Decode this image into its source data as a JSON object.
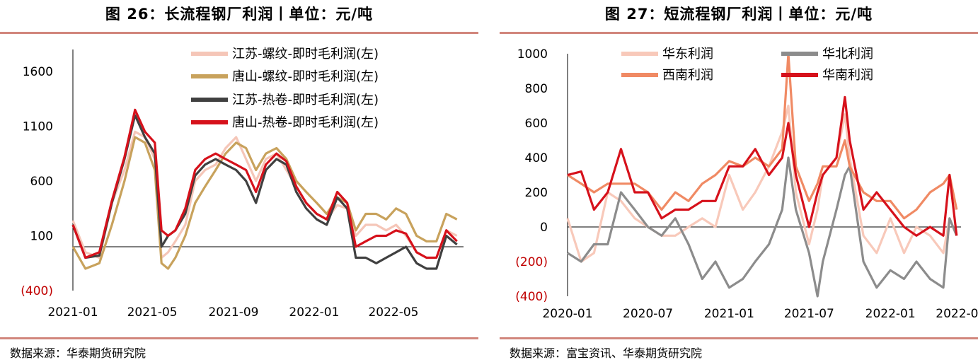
{
  "left": {
    "title": "图 26：长流程钢厂利润丨单位：元/吨",
    "source": "数据来源：华泰期货研究院",
    "chart_data": {
      "type": "line",
      "ylim": [
        -400,
        1800
      ],
      "yticks": [
        1600,
        1100,
        600,
        100,
        -400
      ],
      "ytick_labels": [
        "1600",
        "1100",
        "600",
        "100",
        "(400)"
      ],
      "x_dates": [
        "2021-01-01",
        "2021-01-20",
        "2021-02-10",
        "2021-03-01",
        "2021-03-20",
        "2021-04-05",
        "2021-04-20",
        "2021-05-05",
        "2021-05-15",
        "2021-05-25",
        "2021-06-05",
        "2021-06-20",
        "2021-07-05",
        "2021-07-20",
        "2021-08-05",
        "2021-08-20",
        "2021-09-05",
        "2021-09-20",
        "2021-10-05",
        "2021-10-20",
        "2021-11-05",
        "2021-11-20",
        "2021-12-05",
        "2021-12-20",
        "2022-01-05",
        "2022-01-20",
        "2022-02-05",
        "2022-02-20",
        "2022-03-05",
        "2022-03-20",
        "2022-04-05",
        "2022-04-20",
        "2022-05-05",
        "2022-05-20",
        "2022-06-05",
        "2022-06-20",
        "2022-07-05",
        "2022-07-20",
        "2022-08-05"
      ],
      "xtick_dates": [
        "2021-01-01",
        "2021-05-01",
        "2021-09-01",
        "2022-01-01",
        "2022-05-01"
      ],
      "xtick_labels": [
        "2021-01",
        "2021-05",
        "2021-09",
        "2022-01",
        "2022-05"
      ],
      "series": [
        {
          "name": "江苏-螺纹-即时毛利润(左)",
          "color": "#f5c6b8",
          "values": [
            240,
            -50,
            -100,
            400,
            700,
            1050,
            1000,
            800,
            -100,
            -50,
            50,
            200,
            600,
            700,
            750,
            900,
            1000,
            800,
            600,
            800,
            850,
            700,
            550,
            400,
            300,
            250,
            380,
            350,
            100,
            200,
            200,
            150,
            200,
            100,
            -50,
            -100,
            -100,
            150,
            100
          ]
        },
        {
          "name": "唐山-螺纹-即时毛利润(左)",
          "color": "#c8a25c",
          "values": [
            0,
            -200,
            -150,
            200,
            600,
            1000,
            950,
            700,
            -150,
            -200,
            -100,
            100,
            400,
            550,
            700,
            850,
            950,
            900,
            700,
            850,
            900,
            800,
            600,
            500,
            400,
            300,
            450,
            400,
            150,
            300,
            300,
            250,
            350,
            300,
            100,
            50,
            50,
            300,
            250
          ]
        },
        {
          "name": "江苏-热卷-即时毛利润(左)",
          "color": "#404040",
          "values": [
            200,
            -100,
            -80,
            400,
            800,
            1200,
            1000,
            850,
            0,
            100,
            150,
            300,
            650,
            750,
            800,
            750,
            700,
            600,
            400,
            700,
            800,
            750,
            500,
            350,
            250,
            200,
            450,
            350,
            -100,
            -100,
            -150,
            -100,
            -50,
            0,
            -150,
            -200,
            -200,
            100,
            20
          ]
        },
        {
          "name": "唐山-热卷-即时毛利润(左)",
          "color": "#d6111b",
          "values": [
            200,
            -100,
            -50,
            420,
            820,
            1250,
            1050,
            950,
            150,
            100,
            150,
            350,
            700,
            800,
            850,
            800,
            750,
            700,
            500,
            750,
            850,
            780,
            550,
            400,
            300,
            250,
            500,
            400,
            0,
            50,
            100,
            100,
            150,
            120,
            -50,
            -100,
            -100,
            150,
            50
          ]
        }
      ]
    }
  },
  "right": {
    "title": "图 27：短流程钢厂利润丨单位：元/吨",
    "source": "数据来源：富宝资讯、华泰期货研究院",
    "chart_data": {
      "type": "line",
      "ylim": [
        -400,
        1000
      ],
      "yticks": [
        1000,
        800,
        600,
        400,
        200,
        0,
        -200,
        -400
      ],
      "ytick_labels": [
        "1000",
        "800",
        "600",
        "400",
        "200",
        "0",
        "(200)",
        "(400)"
      ],
      "x_dates": [
        "2020-01-01",
        "2020-02-01",
        "2020-03-01",
        "2020-04-01",
        "2020-05-01",
        "2020-06-01",
        "2020-07-01",
        "2020-08-01",
        "2020-09-01",
        "2020-10-01",
        "2020-11-01",
        "2020-12-01",
        "2021-01-01",
        "2021-02-01",
        "2021-03-01",
        "2021-04-01",
        "2021-05-01",
        "2021-05-15",
        "2021-06-01",
        "2021-07-01",
        "2021-07-20",
        "2021-08-01",
        "2021-09-01",
        "2021-09-20",
        "2021-10-01",
        "2021-11-01",
        "2021-12-01",
        "2022-01-01",
        "2022-02-01",
        "2022-03-01",
        "2022-04-01",
        "2022-05-01",
        "2022-05-15",
        "2022-05-31"
      ],
      "xtick_dates": [
        "2020-01-01",
        "2020-07-01",
        "2021-01-01",
        "2021-07-01",
        "2022-01-01",
        "2022-06-01"
      ],
      "xtick_labels": [
        "2020-01",
        "2020-07",
        "2021-01",
        "2021-07",
        "2022-01",
        "2022-0"
      ],
      "series": [
        {
          "name": "华东利润",
          "color": "#f8c9ba",
          "values": [
            50,
            -200,
            -150,
            200,
            150,
            50,
            0,
            -50,
            -50,
            0,
            50,
            0,
            300,
            100,
            200,
            350,
            550,
            700,
            200,
            -100,
            100,
            300,
            400,
            650,
            400,
            -50,
            -150,
            50,
            -150,
            0,
            -50,
            -150,
            50,
            -50
          ]
        },
        {
          "name": "华北利润",
          "color": "#8c8c8c",
          "values": [
            -150,
            -200,
            -100,
            -100,
            200,
            100,
            0,
            -50,
            50,
            -100,
            -300,
            -200,
            -350,
            -300,
            -200,
            -100,
            100,
            400,
            100,
            -150,
            -400,
            -200,
            100,
            300,
            350,
            -200,
            -350,
            -250,
            -300,
            -200,
            -300,
            -350,
            50,
            -50
          ]
        },
        {
          "name": "西南利润",
          "color": "#f08a64",
          "values": [
            300,
            250,
            200,
            250,
            250,
            250,
            200,
            100,
            200,
            150,
            250,
            300,
            380,
            350,
            400,
            350,
            450,
            1000,
            350,
            150,
            250,
            350,
            350,
            500,
            350,
            200,
            150,
            150,
            50,
            100,
            200,
            250,
            300,
            100
          ]
        },
        {
          "name": "华南利润",
          "color": "#d6111b",
          "values": [
            300,
            320,
            100,
            200,
            450,
            200,
            200,
            50,
            100,
            100,
            150,
            150,
            350,
            350,
            450,
            300,
            400,
            600,
            300,
            0,
            200,
            300,
            400,
            750,
            500,
            100,
            200,
            100,
            0,
            -50,
            0,
            -50,
            300,
            -50
          ]
        }
      ]
    }
  }
}
